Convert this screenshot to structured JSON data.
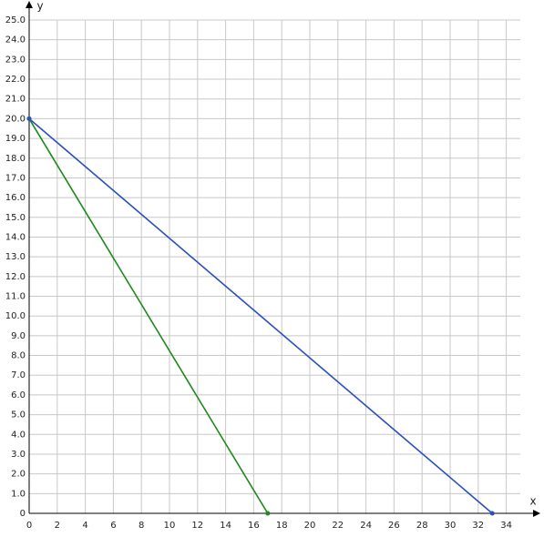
{
  "chart_data": {
    "type": "line",
    "xlabel": "x",
    "ylabel": "y",
    "xlim": [
      0,
      35
    ],
    "ylim": [
      0,
      25
    ],
    "xticks": [
      0,
      2,
      4,
      6,
      8,
      10,
      12,
      14,
      16,
      18,
      20,
      22,
      24,
      26,
      28,
      30,
      32,
      34
    ],
    "yticks": [
      0,
      {
        "value": 1,
        "label": "1.0"
      },
      {
        "value": 2,
        "label": "2.0"
      },
      {
        "value": 3,
        "label": "3.0"
      },
      {
        "value": 4,
        "label": "4.0"
      },
      {
        "value": 5,
        "label": "5.0"
      },
      {
        "value": 6,
        "label": "6.0"
      },
      {
        "value": 7,
        "label": "7.0"
      },
      {
        "value": 8,
        "label": "8.0"
      },
      {
        "value": 9,
        "label": "9.0"
      },
      {
        "value": 10,
        "label": "10.0"
      },
      {
        "value": 11,
        "label": "11.0"
      },
      {
        "value": 12,
        "label": "12.0"
      },
      {
        "value": 13,
        "label": "13.0"
      },
      {
        "value": 14,
        "label": "14.0"
      },
      {
        "value": 15,
        "label": "15.0"
      },
      {
        "value": 16,
        "label": "16.0"
      },
      {
        "value": 17,
        "label": "17.0"
      },
      {
        "value": 18,
        "label": "18.0"
      },
      {
        "value": 19,
        "label": "19.0"
      },
      {
        "value": 20,
        "label": "20.0"
      },
      {
        "value": 21,
        "label": "21.0"
      },
      {
        "value": 22,
        "label": "22.0"
      },
      {
        "value": 23,
        "label": "23.0"
      },
      {
        "value": 24,
        "label": "24.0"
      },
      {
        "value": 25,
        "label": "25.0"
      }
    ],
    "grid": true,
    "series": [
      {
        "color": "#1a8a1a",
        "x": [
          0,
          17
        ],
        "values": [
          20,
          0
        ]
      },
      {
        "color": "#2a4fbf",
        "x": [
          0,
          33
        ],
        "values": [
          20,
          0
        ]
      }
    ]
  }
}
